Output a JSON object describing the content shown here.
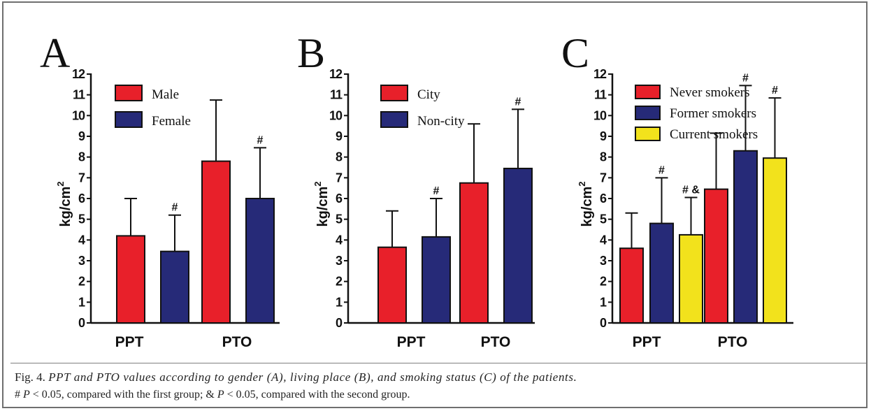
{
  "chart_data": [
    {
      "type": "bar",
      "panel_label": "A",
      "ylabel": "kg/cm",
      "ylabel_sup": "2",
      "ylim": [
        0,
        12
      ],
      "yticks": [
        "0",
        "1",
        "2",
        "3",
        "4",
        "5",
        "6",
        "7",
        "8",
        "9",
        "10",
        "11",
        "12"
      ],
      "categories": [
        "PPT",
        "PTO"
      ],
      "legend_placement": "top-left",
      "series": [
        {
          "name": "Male",
          "color": "#e8202a",
          "values": [
            4.2,
            7.8
          ],
          "errors": [
            1.8,
            2.95
          ],
          "marks": [
            "",
            ""
          ]
        },
        {
          "name": "Female",
          "color": "#262a78",
          "values": [
            3.45,
            6.0
          ],
          "errors": [
            1.75,
            2.45
          ],
          "marks": [
            "#",
            "#"
          ]
        }
      ]
    },
    {
      "type": "bar",
      "panel_label": "B",
      "ylabel": "kg/cm",
      "ylabel_sup": "2",
      "ylim": [
        0,
        12
      ],
      "yticks": [
        "0",
        "1",
        "2",
        "3",
        "4",
        "5",
        "6",
        "7",
        "8",
        "9",
        "10",
        "11",
        "12"
      ],
      "categories": [
        "PPT",
        "PTO"
      ],
      "legend_placement": "top-left",
      "series": [
        {
          "name": "City",
          "color": "#e8202a",
          "values": [
            3.65,
            6.75
          ],
          "errors": [
            1.75,
            2.85
          ],
          "marks": [
            "",
            ""
          ]
        },
        {
          "name": "Non-city",
          "color": "#262a78",
          "values": [
            4.15,
            7.45
          ],
          "errors": [
            1.85,
            2.85
          ],
          "marks": [
            "#",
            "#"
          ]
        }
      ]
    },
    {
      "type": "bar",
      "panel_label": "C",
      "ylabel": "kg/cm",
      "ylabel_sup": "2",
      "ylim": [
        0,
        12
      ],
      "yticks": [
        "0",
        "1",
        "2",
        "3",
        "4",
        "5",
        "6",
        "7",
        "8",
        "9",
        "10",
        "11",
        "12"
      ],
      "categories": [
        "PPT",
        "PTO"
      ],
      "legend_placement": "top-left",
      "series": [
        {
          "name": "Never smokers",
          "color": "#e8202a",
          "values": [
            3.6,
            6.45
          ],
          "errors": [
            1.7,
            2.7
          ],
          "marks": [
            "",
            ""
          ]
        },
        {
          "name": "Former smokers",
          "color": "#262a78",
          "values": [
            4.8,
            8.3
          ],
          "errors": [
            2.2,
            3.15
          ],
          "marks": [
            "#",
            "#"
          ]
        },
        {
          "name": "Current smokers",
          "color": "#f2e21c",
          "values": [
            4.25,
            7.95
          ],
          "errors": [
            1.8,
            2.9
          ],
          "marks": [
            "# &",
            "#"
          ]
        }
      ]
    }
  ],
  "caption": {
    "line1_prefix": "Fig. 4. ",
    "line1_italic": "PPT and PTO values according to gender (A), living place (B), and smoking status (C) of the patients.",
    "line2_parts": [
      "# ",
      "P",
      " < 0.05, compared with the first group; & ",
      "P",
      " < 0.05, compared with the second group."
    ]
  }
}
